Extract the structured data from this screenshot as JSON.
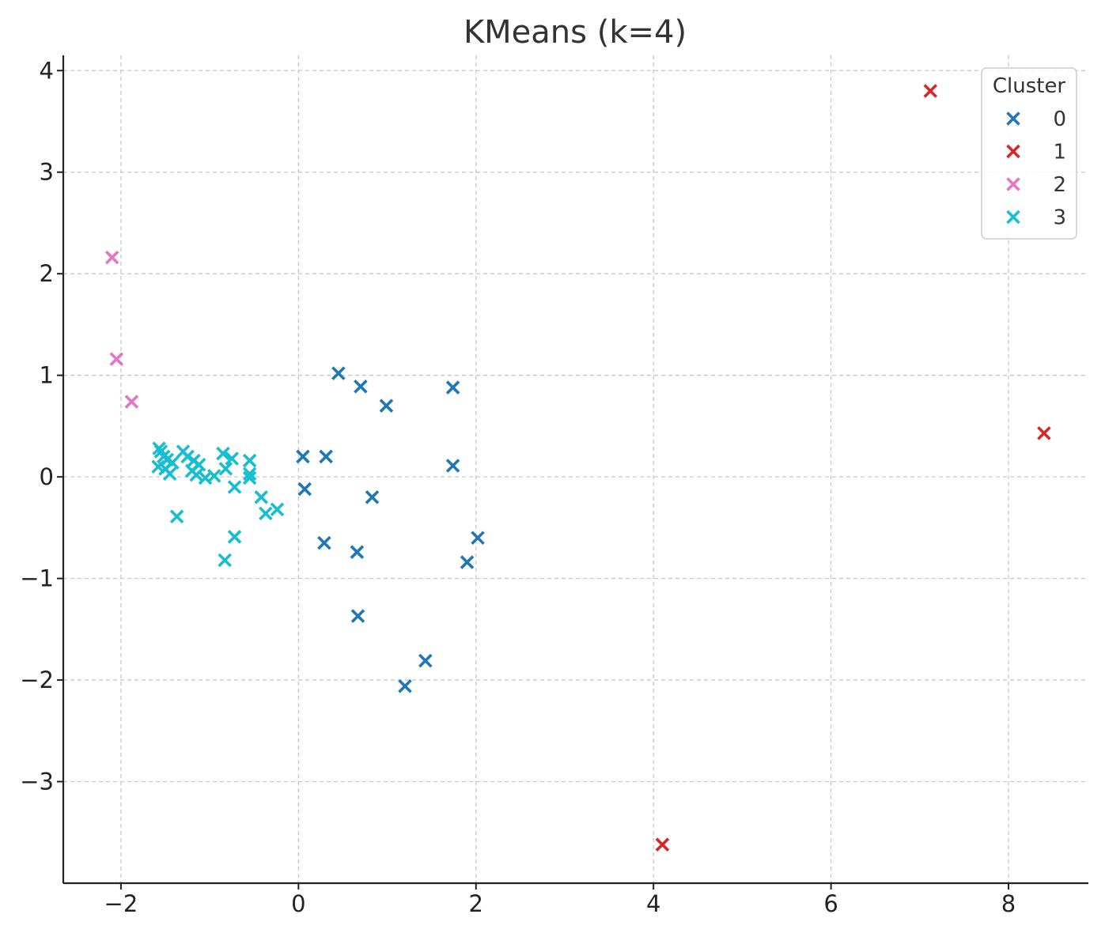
{
  "chart_data": {
    "type": "scatter",
    "title": "KMeans (k=4)",
    "xlabel": "",
    "ylabel": "",
    "xlim": [
      -2.65,
      8.9
    ],
    "ylim": [
      -4.0,
      4.15
    ],
    "xticks": [
      -2,
      0,
      2,
      4,
      6,
      8
    ],
    "yticks": [
      -3,
      -2,
      -1,
      0,
      1,
      2,
      3,
      4
    ],
    "grid": true,
    "marker": "x",
    "legend": {
      "title": "Cluster",
      "placement": "top-right"
    },
    "series": [
      {
        "name": "0",
        "color": "#1f77b4",
        "points": [
          [
            0.45,
            1.02
          ],
          [
            0.7,
            0.89
          ],
          [
            0.99,
            0.7
          ],
          [
            1.74,
            0.88
          ],
          [
            1.74,
            0.11
          ],
          [
            0.05,
            0.2
          ],
          [
            0.31,
            0.2
          ],
          [
            0.07,
            -0.12
          ],
          [
            0.83,
            -0.2
          ],
          [
            2.02,
            -0.6
          ],
          [
            1.9,
            -0.84
          ],
          [
            0.29,
            -0.65
          ],
          [
            0.66,
            -0.74
          ],
          [
            0.67,
            -1.37
          ],
          [
            1.43,
            -1.81
          ],
          [
            1.2,
            -2.06
          ]
        ]
      },
      {
        "name": "1",
        "color": "#d62728",
        "points": [
          [
            7.12,
            3.8
          ],
          [
            8.4,
            0.43
          ],
          [
            4.1,
            -3.62
          ]
        ]
      },
      {
        "name": "2",
        "color": "#e377c2",
        "points": [
          [
            -2.1,
            2.16
          ],
          [
            -2.05,
            1.16
          ],
          [
            -1.88,
            0.74
          ]
        ]
      },
      {
        "name": "3",
        "color": "#17becf",
        "points": [
          [
            -1.57,
            0.28
          ],
          [
            -1.55,
            0.25
          ],
          [
            -1.52,
            0.2
          ],
          [
            -1.48,
            0.17
          ],
          [
            -1.42,
            0.14
          ],
          [
            -1.58,
            0.1
          ],
          [
            -1.5,
            0.08
          ],
          [
            -1.45,
            0.03
          ],
          [
            -1.3,
            0.25
          ],
          [
            -1.25,
            0.2
          ],
          [
            -1.18,
            0.16
          ],
          [
            -1.12,
            0.12
          ],
          [
            -1.2,
            0.06
          ],
          [
            -1.15,
            0.02
          ],
          [
            -1.05,
            -0.01
          ],
          [
            -0.95,
            0.01
          ],
          [
            -0.85,
            0.23
          ],
          [
            -0.75,
            0.18
          ],
          [
            -0.82,
            0.08
          ],
          [
            -0.55,
            0.16
          ],
          [
            -0.55,
            0.03
          ],
          [
            -0.55,
            -0.01
          ],
          [
            -0.72,
            -0.1
          ],
          [
            -0.42,
            -0.2
          ],
          [
            -0.37,
            -0.36
          ],
          [
            -0.24,
            -0.32
          ],
          [
            -1.37,
            -0.39
          ],
          [
            -0.72,
            -0.59
          ],
          [
            -0.83,
            -0.82
          ]
        ]
      }
    ]
  }
}
